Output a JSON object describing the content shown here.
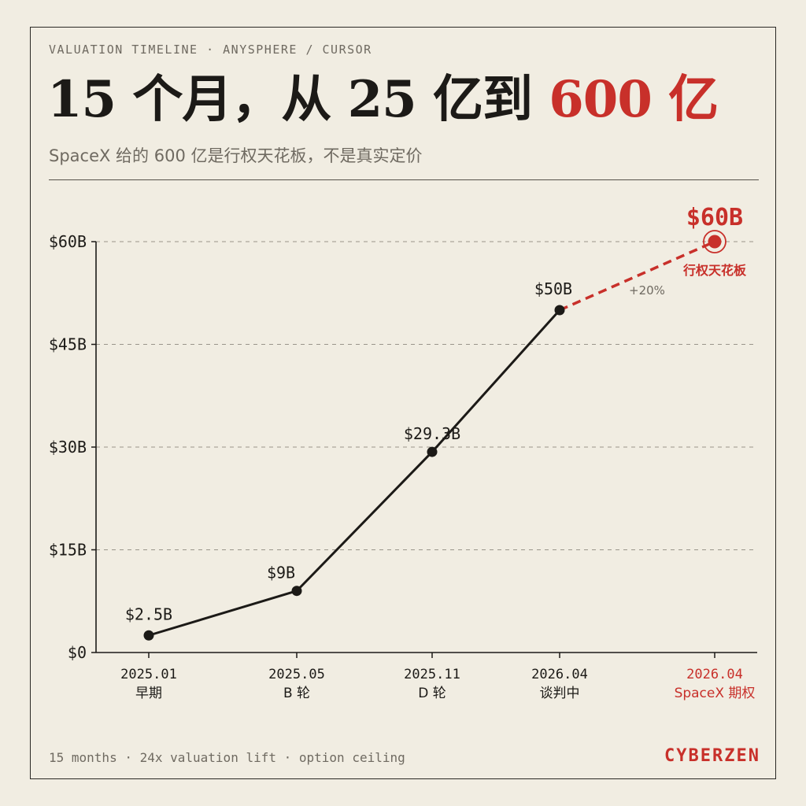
{
  "kicker": "VALUATION TIMELINE · ANYSPHERE / CURSOR",
  "headline": {
    "main": "15 个月，从 25 亿到 ",
    "accent": "600 亿"
  },
  "subtitle": "SpaceX 给的 600 亿是行权天花板，不是真实定价",
  "footer": {
    "note": "15 months · 24x valuation lift · option ceiling",
    "brand": "CYBERZEN"
  },
  "colors": {
    "ink": "#1c1a17",
    "accent": "#c8302a",
    "muted": "#6f6a61",
    "grid": "#9a958b",
    "paper": "#f1ede2"
  },
  "chart_data": {
    "type": "line",
    "y_ticks": [
      {
        "value": 0,
        "label": "$0"
      },
      {
        "value": 15,
        "label": "$15B"
      },
      {
        "value": 30,
        "label": "$30B"
      },
      {
        "value": 45,
        "label": "$45B"
      },
      {
        "value": 60,
        "label": "$60B"
      }
    ],
    "ylim": [
      0,
      60
    ],
    "grid": "dashed horizontal",
    "points": [
      {
        "date": "2025.01",
        "stage": "早期",
        "value": 2.5,
        "label": "$2.5B"
      },
      {
        "date": "2025.05",
        "stage": "B 轮",
        "value": 9,
        "label": "$9B"
      },
      {
        "date": "2025.11",
        "stage": "D 轮",
        "value": 29.3,
        "label": "$29.3B"
      },
      {
        "date": "2026.04",
        "stage": "谈判中",
        "value": 50,
        "label": "$50B"
      }
    ],
    "projection": {
      "date": "2026.04",
      "stage": "SpaceX 期权",
      "value": 60,
      "label": "$60B",
      "note": "行权天花板",
      "delta": "+20%"
    }
  }
}
